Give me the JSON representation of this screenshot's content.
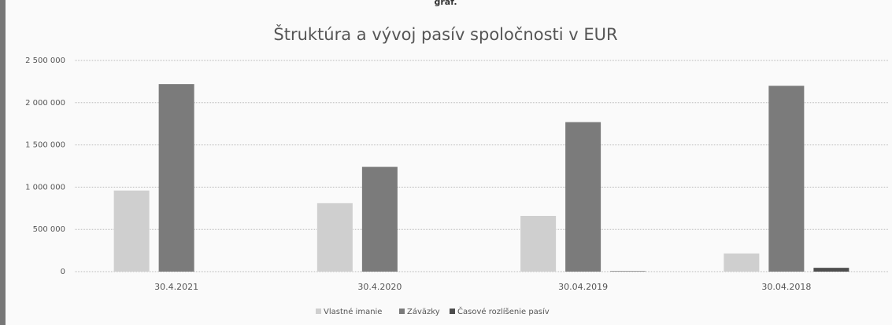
{
  "chart_data": {
    "type": "bar",
    "caption": "graf.",
    "title": "Štruktúra a vývoj pasív spoločnosti v EUR",
    "categories": [
      "30.4.2021",
      "30.4.2020",
      "30.04.2019",
      "30.04.2018"
    ],
    "series": [
      {
        "name": "Vlastné imanie",
        "color": "#cfcfcf",
        "values": [
          960000,
          810000,
          660000,
          215000
        ]
      },
      {
        "name": "Záväzky",
        "color": "#7b7b7b",
        "values": [
          2220000,
          1240000,
          1770000,
          2200000
        ]
      },
      {
        "name": "Časové rozlíšenie pasív",
        "color": "#4d4d4d",
        "values": [
          0,
          0,
          5000,
          45000
        ]
      }
    ],
    "ylim": [
      0,
      2500000
    ],
    "yticks": [
      0,
      {
        "value": 500000,
        "label": "500 000"
      },
      {
        "value": 1000000,
        "label": "1 000 000"
      },
      {
        "value": 1500000,
        "label": "1 500 000"
      },
      {
        "value": 2000000,
        "label": "2 000 000"
      },
      {
        "value": 2500000,
        "label": "2 500 000"
      }
    ],
    "grid": true,
    "legend": "bottom"
  }
}
